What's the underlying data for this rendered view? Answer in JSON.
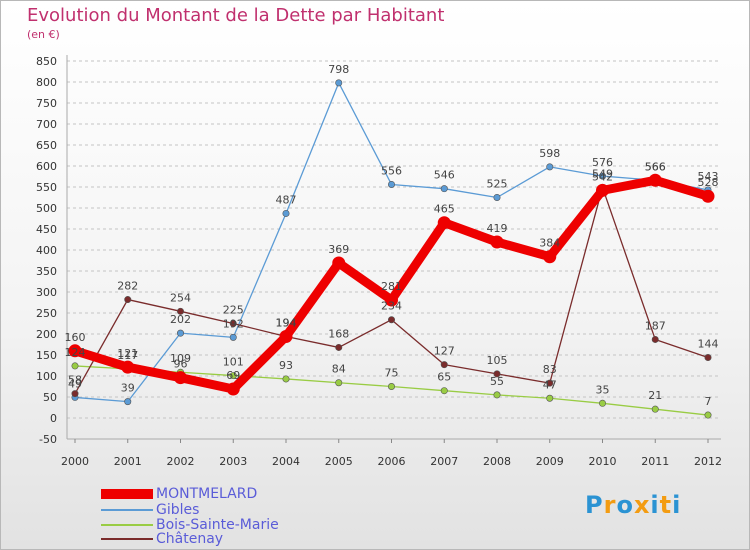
{
  "chart_data": {
    "type": "line",
    "title": "Evolution du Montant de la Dette par Habitant",
    "subtitle": "(en €)",
    "categories": [
      "2000",
      "2001",
      "2002",
      "2003",
      "2004",
      "2005",
      "2006",
      "2007",
      "2008",
      "2009",
      "2010",
      "2011",
      "2012"
    ],
    "ylim": [
      -50,
      850
    ],
    "yticks": [
      "-50",
      "0",
      "50",
      "100",
      "150",
      "200",
      "250",
      "300",
      "350",
      "400",
      "450",
      "500",
      "550",
      "600",
      "650",
      "700",
      "750",
      "800",
      "850"
    ],
    "grid": "horizontal dashed",
    "legend_position": "bottom-left",
    "series": [
      {
        "name": "MONTMELARD",
        "color": "#ee0000",
        "values": [
          160,
          121,
          96,
          69,
          194,
          369,
          281,
          465,
          419,
          384,
          542,
          566,
          528
        ]
      },
      {
        "name": "Gibles",
        "color": "#5b9bd5",
        "values": [
          49,
          39,
          202,
          192,
          487,
          798,
          556,
          546,
          525,
          598,
          576,
          566,
          543
        ]
      },
      {
        "name": "Bois-Sainte-Marie",
        "color": "#99cc44",
        "values": [
          124,
          117,
          109,
          101,
          93,
          84,
          75,
          65,
          55,
          47,
          35,
          21,
          7
        ]
      },
      {
        "name": "Châtenay",
        "color": "#7a2c2c",
        "values": [
          58,
          282,
          254,
          225,
          194,
          168,
          234,
          127,
          105,
          83,
          549,
          187,
          144
        ]
      }
    ]
  },
  "logo": {
    "letters": [
      "P",
      "r",
      "o",
      "x",
      "i",
      "t",
      "i"
    ],
    "colors": [
      "#2b93d3",
      "#f39c12",
      "#2b93d3",
      "#f39c12",
      "#2b93d3",
      "#f39c12",
      "#2b93d3"
    ]
  }
}
